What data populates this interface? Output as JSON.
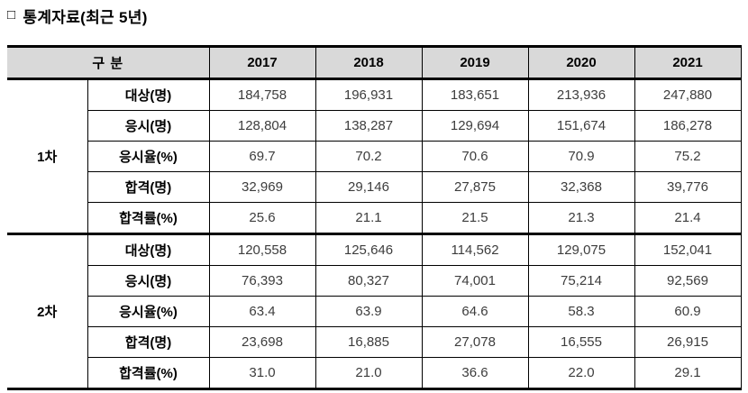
{
  "title": {
    "bullet": "□",
    "text": "통계자료(최근 5년)"
  },
  "colors": {
    "header_bg": "#d9d9d9",
    "border": "#000000",
    "value_text": "#3d3d3d"
  },
  "table": {
    "header": {
      "category": "구 분",
      "years": [
        "2017",
        "2018",
        "2019",
        "2020",
        "2021"
      ]
    },
    "groups": [
      {
        "name": "1차",
        "rows": [
          {
            "label": "대상(명)",
            "values": [
              "184,758",
              "196,931",
              "183,651",
              "213,936",
              "247,880"
            ]
          },
          {
            "label": "응시(명)",
            "values": [
              "128,804",
              "138,287",
              "129,694",
              "151,674",
              "186,278"
            ]
          },
          {
            "label": "응시율(%)",
            "values": [
              "69.7",
              "70.2",
              "70.6",
              "70.9",
              "75.2"
            ]
          },
          {
            "label": "합격(명)",
            "values": [
              "32,969",
              "29,146",
              "27,875",
              "32,368",
              "39,776"
            ]
          },
          {
            "label": "합격률(%)",
            "values": [
              "25.6",
              "21.1",
              "21.5",
              "21.3",
              "21.4"
            ]
          }
        ]
      },
      {
        "name": "2차",
        "rows": [
          {
            "label": "대상(명)",
            "values": [
              "120,558",
              "125,646",
              "114,562",
              "129,075",
              "152,041"
            ]
          },
          {
            "label": "응시(명)",
            "values": [
              "76,393",
              "80,327",
              "74,001",
              "75,214",
              "92,569"
            ]
          },
          {
            "label": "응시율(%)",
            "values": [
              "63.4",
              "63.9",
              "64.6",
              "58.3",
              "60.9"
            ]
          },
          {
            "label": "합격(명)",
            "values": [
              "23,698",
              "16,885",
              "27,078",
              "16,555",
              "26,915"
            ]
          },
          {
            "label": "합격률(%)",
            "values": [
              "31.0",
              "21.0",
              "36.6",
              "22.0",
              "29.1"
            ]
          }
        ]
      }
    ]
  }
}
